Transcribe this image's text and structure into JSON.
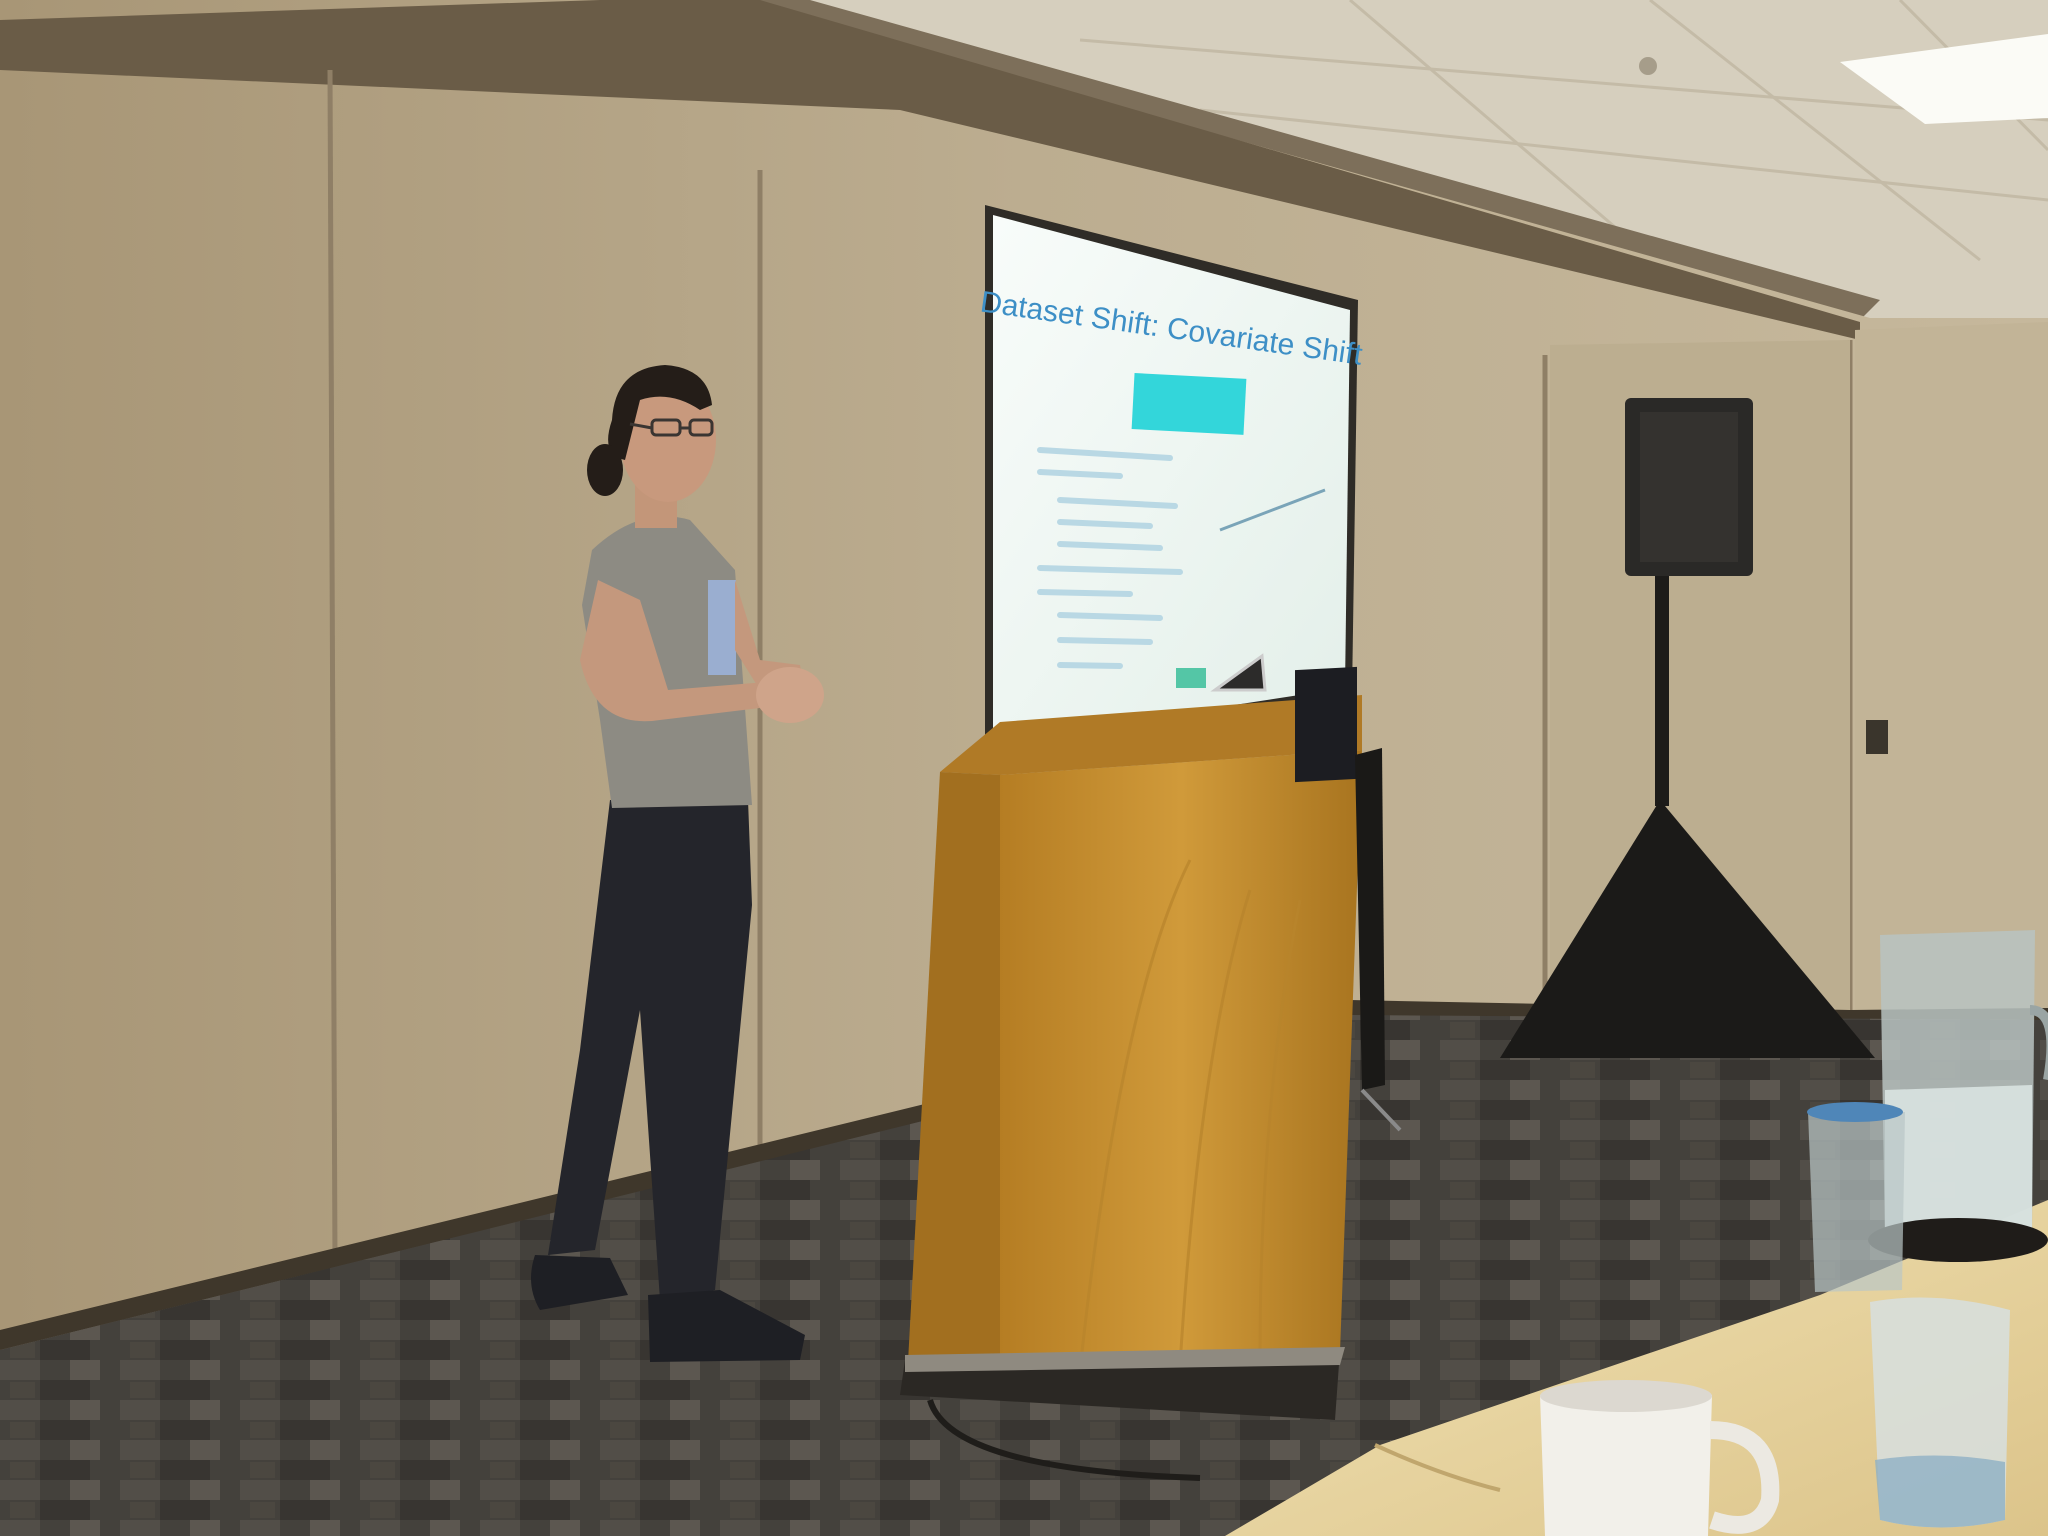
{
  "scene": {
    "slide": {
      "title": "Dataset Shift: Covariate Shift"
    },
    "colors": {
      "wall": "#b3a386",
      "ceiling": "#d2c9b6",
      "carpet": "#4d4a45",
      "podium": "#c9902f",
      "screen": "#f1f8f4",
      "slide_accent": "#33d6da",
      "table_cloth": "#e8d6a3"
    },
    "icons": [
      "speaker-icon",
      "laptop-icon",
      "mug-icon",
      "pitcher-icon",
      "glass-icon"
    ]
  }
}
